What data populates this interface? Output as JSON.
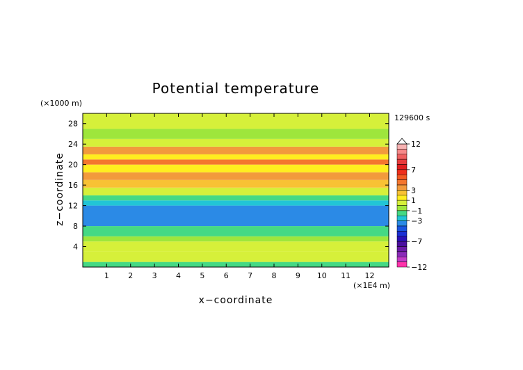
{
  "chart_data": {
    "type": "heatmap",
    "title": "Potential temperature",
    "xlabel": "x−coordinate",
    "ylabel": "z−coordinate",
    "x_unit": "(×1E4 m)",
    "y_unit": "(×1000 m)",
    "time_label": "129600 s",
    "xlim": [
      0,
      12.8
    ],
    "ylim": [
      0,
      30
    ],
    "x_ticks": [
      "1",
      "2",
      "3",
      "4",
      "5",
      "6",
      "7",
      "8",
      "9",
      "10",
      "11",
      "12"
    ],
    "y_ticks": [
      "4",
      "8",
      "12",
      "16",
      "20",
      "24",
      "28"
    ],
    "colorbar": {
      "labels": [
        "12",
        "7",
        "3",
        "1",
        "−1",
        "−3",
        "−7",
        "−12"
      ],
      "bins": [
        {
          "lo": 11,
          "hi": 12,
          "color": "#f7b2b2"
        },
        {
          "lo": 10,
          "hi": 11,
          "color": "#f78a8a"
        },
        {
          "lo": 9,
          "hi": 10,
          "color": "#f06060"
        },
        {
          "lo": 8,
          "hi": 9,
          "color": "#e83a3a"
        },
        {
          "lo": 7,
          "hi": 8,
          "color": "#e01e1e"
        },
        {
          "lo": 6,
          "hi": 7,
          "color": "#ef2f1c"
        },
        {
          "lo": 5,
          "hi": 6,
          "color": "#f45a23"
        },
        {
          "lo": 4,
          "hi": 5,
          "color": "#f4762e"
        },
        {
          "lo": 3,
          "hi": 4,
          "color": "#f29a3c"
        },
        {
          "lo": 2,
          "hi": 3,
          "color": "#f8c234"
        },
        {
          "lo": 1,
          "hi": 2,
          "color": "#ffee1f"
        },
        {
          "lo": 0,
          "hi": 1,
          "color": "#d6f03a"
        },
        {
          "lo": -1,
          "hi": 0,
          "color": "#9ee63c"
        },
        {
          "lo": -2,
          "hi": -1,
          "color": "#45d984"
        },
        {
          "lo": -3,
          "hi": -2,
          "color": "#22c5d6"
        },
        {
          "lo": -4,
          "hi": -3,
          "color": "#2b8ae6"
        },
        {
          "lo": -5,
          "hi": -4,
          "color": "#1a55e0"
        },
        {
          "lo": -6,
          "hi": -5,
          "color": "#1b2fd4"
        },
        {
          "lo": -7,
          "hi": -6,
          "color": "#2a10b8"
        },
        {
          "lo": -8,
          "hi": -7,
          "color": "#4a0f9e"
        },
        {
          "lo": -9,
          "hi": -8,
          "color": "#6a1aa6"
        },
        {
          "lo": -10,
          "hi": -9,
          "color": "#8a2ab8"
        },
        {
          "lo": -11,
          "hi": -10,
          "color": "#c23cc8"
        },
        {
          "lo": -12,
          "hi": -11,
          "color": "#ff33aa"
        }
      ]
    },
    "layers": [
      {
        "z": [
          0,
          1
        ],
        "value": -2
      },
      {
        "z": [
          1,
          3
        ],
        "value": 0.5
      },
      {
        "z": [
          3,
          5
        ],
        "value": 0.5
      },
      {
        "z": [
          5,
          6
        ],
        "value": -0.5
      },
      {
        "z": [
          6,
          8
        ],
        "value": -1.5
      },
      {
        "z": [
          8,
          12
        ],
        "value": -4
      },
      {
        "z": [
          12,
          13
        ],
        "value": -2.5
      },
      {
        "z": [
          13,
          14
        ],
        "value": -1.5
      },
      {
        "z": [
          14,
          15.5
        ],
        "value": 0.5
      },
      {
        "z": [
          15.5,
          17
        ],
        "value": 2.5
      },
      {
        "z": [
          17,
          18.5
        ],
        "value": 3.5
      },
      {
        "z": [
          18.5,
          20
        ],
        "value": 1.5
      },
      {
        "z": [
          20,
          21
        ],
        "value": 4
      },
      {
        "z": [
          21,
          22
        ],
        "value": 1
      },
      {
        "z": [
          22,
          23.5
        ],
        "value": 3
      },
      {
        "z": [
          23.5,
          25
        ],
        "value": 0.5
      },
      {
        "z": [
          25,
          27
        ],
        "value": -0.5
      },
      {
        "z": [
          27,
          30
        ],
        "value": 0.5
      }
    ]
  }
}
